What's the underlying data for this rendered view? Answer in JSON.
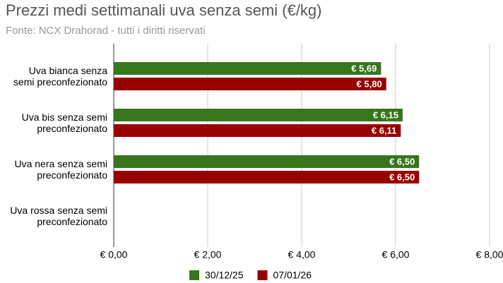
{
  "chart_data": {
    "type": "bar",
    "orientation": "horizontal",
    "title": "Prezzi medi settimanali uva senza semi (€/kg)",
    "subtitle": "Fonte: NCX Drahorad - tutti i diritti riservati",
    "categories": [
      "Uva bianca senza semi preconfezionato",
      "Uva bis senza semi preconfezionato",
      "Uva nera senza semi preconfezionato",
      "Uva rossa senza semi preconfezionato"
    ],
    "series": [
      {
        "name": "30/12/25",
        "color": "#38761d",
        "values": [
          5.69,
          6.15,
          6.5,
          null
        ],
        "value_labels": [
          "€ 5,69",
          "€ 6,15",
          "€ 6,50",
          null
        ]
      },
      {
        "name": "07/01/26",
        "color": "#990000",
        "values": [
          5.8,
          6.11,
          6.5,
          null
        ],
        "value_labels": [
          "€ 5,80",
          "€ 6,11",
          "€ 6,50",
          null
        ]
      }
    ],
    "xlim": [
      0,
      8
    ],
    "xticks": [
      {
        "value": 0,
        "label": "€ 0,00"
      },
      {
        "value": 2,
        "label": "€ 2,00"
      },
      {
        "value": 4,
        "label": "€ 4,00"
      },
      {
        "value": 6,
        "label": "€ 6,00"
      },
      {
        "value": 8,
        "label": "€ 8,00"
      }
    ],
    "grid": true,
    "legend": "bottom"
  }
}
